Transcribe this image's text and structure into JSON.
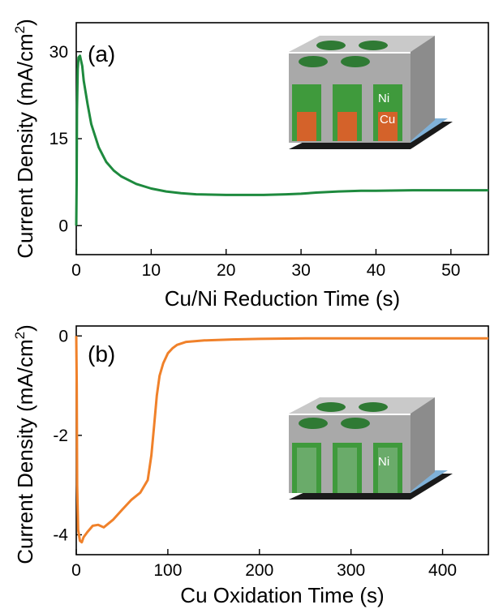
{
  "chart_data": [
    {
      "type": "line",
      "panel_label": "(a)",
      "xlabel": "Cu/Ni Reduction Time (s)",
      "ylabel": "Current Density (mA/cm",
      "ylabel_sup": "2",
      "ylabel_tail": ")",
      "xlim": [
        0,
        55
      ],
      "ylim": [
        -5,
        35
      ],
      "xticks": [
        "0",
        "10",
        "20",
        "30",
        "40",
        "50"
      ],
      "yticks": [
        "0",
        "15",
        "30"
      ],
      "color": "#1e8a3e",
      "series": [
        {
          "x": [
            0,
            0.05,
            0.1,
            0.2,
            0.3,
            0.5,
            0.8,
            1.0,
            1.5,
            2,
            3,
            4,
            5,
            6,
            8,
            10,
            12,
            14,
            16,
            20,
            25,
            28,
            30,
            32,
            35,
            38,
            40,
            45,
            50,
            55
          ],
          "y": [
            0,
            8,
            20,
            27,
            29,
            29.3,
            27.5,
            25,
            21,
            17.5,
            13.5,
            11,
            9.5,
            8.5,
            7.2,
            6.4,
            5.9,
            5.6,
            5.4,
            5.3,
            5.3,
            5.4,
            5.5,
            5.7,
            5.9,
            6.0,
            6.0,
            6.1,
            6.1,
            6.1
          ]
        }
      ],
      "inset_labels": [
        "Ni",
        "Cu"
      ]
    },
    {
      "type": "line",
      "panel_label": "(b)",
      "xlabel": "Cu Oxidation Time (s)",
      "ylabel": "Current Density (mA/cm",
      "ylabel_sup": "2",
      "ylabel_tail": ")",
      "xlim": [
        0,
        450
      ],
      "ylim": [
        -4.4,
        0.2
      ],
      "xticks": [
        "0",
        "100",
        "200",
        "300",
        "400"
      ],
      "yticks": [
        "0",
        "-2",
        "-4"
      ],
      "color": "#f0812a",
      "series": [
        {
          "x": [
            0,
            0.5,
            1,
            2,
            4,
            6,
            8,
            12,
            18,
            24,
            30,
            40,
            50,
            60,
            70,
            78,
            82,
            85,
            88,
            91,
            95,
            100,
            105,
            110,
            120,
            140,
            170,
            200,
            250,
            300,
            350,
            400,
            450
          ],
          "y": [
            0,
            -1.0,
            -3.0,
            -3.9,
            -4.12,
            -4.15,
            -4.05,
            -3.95,
            -3.82,
            -3.8,
            -3.85,
            -3.7,
            -3.5,
            -3.3,
            -3.15,
            -2.9,
            -2.4,
            -1.8,
            -1.2,
            -0.8,
            -0.55,
            -0.35,
            -0.25,
            -0.18,
            -0.12,
            -0.09,
            -0.07,
            -0.06,
            -0.05,
            -0.05,
            -0.05,
            -0.05,
            -0.05
          ]
        }
      ],
      "inset_labels": [
        "Ni"
      ]
    }
  ]
}
